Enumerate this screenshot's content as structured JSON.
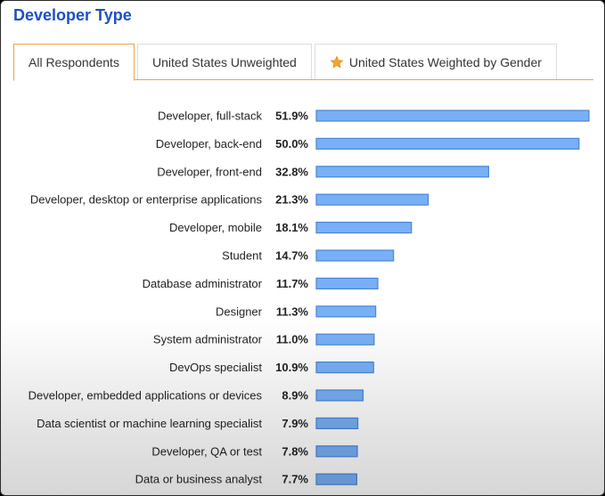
{
  "header": {
    "title": "Developer Type"
  },
  "tabs": [
    {
      "label": "All Respondents",
      "active": true
    },
    {
      "label": "United States Unweighted",
      "active": false
    },
    {
      "label": "United States Weighted by Gender",
      "active": false,
      "icon": "star-icon"
    }
  ],
  "colors": {
    "title": "#1e4fc3",
    "accent": "#f0a24a",
    "bar_fill": "#79b0f5",
    "bar_stroke": "#4a85d9"
  },
  "chart_data": {
    "type": "bar",
    "orientation": "horizontal",
    "categories": [
      "Developer, full-stack",
      "Developer, back-end",
      "Developer, front-end",
      "Developer, desktop or enterprise applications",
      "Developer, mobile",
      "Student",
      "Database administrator",
      "Designer",
      "System administrator",
      "DevOps specialist",
      "Developer, embedded applications or devices",
      "Data scientist or machine learning specialist",
      "Developer, QA or test",
      "Data or business analyst"
    ],
    "values": [
      51.9,
      50.0,
      32.8,
      21.3,
      18.1,
      14.7,
      11.7,
      11.3,
      11.0,
      10.9,
      8.9,
      7.9,
      7.8,
      7.7
    ],
    "labels": [
      "51.9%",
      "50.0%",
      "32.8%",
      "21.3%",
      "18.1%",
      "14.7%",
      "11.7%",
      "11.3%",
      "11.0%",
      "10.9%",
      "8.9%",
      "7.9%",
      "7.8%",
      "7.7%"
    ],
    "xlim": [
      0,
      51.9
    ],
    "grid": false,
    "legend": "none"
  }
}
